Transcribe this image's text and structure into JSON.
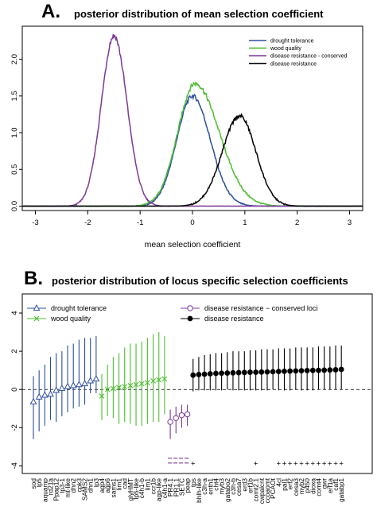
{
  "chart_data": [
    {
      "panel_letter": "A.",
      "title": "posterior distribution of mean selection coefficient",
      "type": "line",
      "xlabel": "mean selection coefficient",
      "ylabel": "",
      "xlim": [
        -3.25,
        3.25
      ],
      "ylim": [
        -0.06,
        2.45
      ],
      "x_ticks": [
        -3,
        -2,
        -1,
        0,
        1,
        2,
        3
      ],
      "y_ticks": [
        0.0,
        0.5,
        1.0,
        1.5,
        2.0
      ],
      "y_tick_labels": [
        "0.0",
        "0.5",
        "1.0",
        "1.5",
        "2.0"
      ],
      "grid": false,
      "legend_position": "top-right",
      "series": [
        {
          "name": "drought tolerance",
          "color": "#2e4f9e",
          "peak_x": 0.0,
          "peak_y": 1.5,
          "sd_left": 0.3,
          "sd_right": 0.34
        },
        {
          "name": "wood quality",
          "color": "#4cbd2f",
          "peak_x": 0.05,
          "peak_y": 1.67,
          "sd_left": 0.33,
          "sd_right": 0.46
        },
        {
          "name": "disease resistance - conserved",
          "color": "#7a3a97",
          "peak_x": -1.5,
          "peak_y": 2.32,
          "sd_left": 0.24,
          "sd_right": 0.25
        },
        {
          "name": "disease resistance",
          "color": "#000000",
          "peak_x": 0.9,
          "peak_y": 1.23,
          "sd_left": 0.33,
          "sd_right": 0.31
        }
      ]
    },
    {
      "panel_letter": "B.",
      "title": "posterior distribution of locus specific selection coefficients",
      "type": "scatter",
      "ylim": [
        -4.4,
        5.0
      ],
      "y_ticks": [
        4,
        2,
        0,
        -2,
        -4
      ],
      "y_tick_labels": [
        "4",
        "2",
        "0",
        "-2",
        "-4"
      ],
      "reference_line_y": 0,
      "grid": false,
      "legend": [
        {
          "label": "drought tolerance",
          "color": "#2e4f9e",
          "marker": "triangle"
        },
        {
          "label": "wood quality",
          "color": "#4cbd2f",
          "marker": "cross"
        },
        {
          "label": "disease resistance − conserved loci",
          "color": "#7a3a97",
          "marker": "circle"
        },
        {
          "label": "disease resistance",
          "color": "#000000",
          "marker": "dot"
        }
      ],
      "groups": [
        {
          "name": "drought tolerance",
          "color": "#2e4f9e",
          "marker": "triangle",
          "loci": [
            "sod",
            "lp5",
            "aquamp",
            "rd21a",
            "Ppap12",
            "lp3-1",
            "mt-like",
            "dhn2",
            "cpk3",
            "SAMS2",
            "dhn1",
            "lp3"
          ],
          "median": [
            -0.65,
            -0.4,
            -0.3,
            -0.25,
            -0.05,
            0.05,
            0.15,
            0.2,
            0.25,
            0.3,
            0.45,
            0.55
          ],
          "low": [
            -2.6,
            -2.2,
            -1.9,
            -1.6,
            -1.7,
            -1.4,
            -1.2,
            -1.0,
            -0.9,
            -0.8,
            -0.2,
            -0.2
          ],
          "high": [
            0.7,
            1.0,
            1.3,
            1.7,
            1.9,
            2.0,
            2.3,
            2.4,
            2.6,
            2.7,
            2.7,
            2.8
          ]
        },
        {
          "name": "wood quality",
          "color": "#4cbd2f",
          "marker": "cross",
          "loci": [
            "agp4",
            "agp6",
            "sams1",
            "lim1",
            "cad",
            "glyHMT",
            "lp5-like",
            "c4h1-b",
            "lim1",
            "ccr1b",
            "agp-like",
            "c4h1-a"
          ],
          "median": [
            -0.35,
            0.0,
            0.05,
            0.1,
            0.15,
            0.2,
            0.25,
            0.3,
            0.35,
            0.45,
            0.5,
            0.55
          ],
          "low": [
            -1.6,
            -1.4,
            -1.5,
            -1.8,
            -1.7,
            -1.8,
            -1.9,
            -1.9,
            -1.8,
            -1.7,
            -1.7,
            -1.3
          ],
          "high": [
            0.8,
            1.3,
            1.7,
            1.9,
            2.2,
            2.4,
            2.4,
            2.5,
            2.7,
            2.9,
            3.0,
            2.8
          ]
        },
        {
          "name": "disease resistance - conserved loci",
          "color": "#7a3a97",
          "marker": "circle",
          "loci": [
            "PR4.1",
            "PR1.1",
            "SETC",
            "peap"
          ],
          "median": [
            -1.7,
            -1.5,
            -1.35,
            -1.3
          ],
          "low": [
            -2.6,
            -2.3,
            -2.0,
            -1.9
          ],
          "high": [
            -1.05,
            -0.9,
            -0.8,
            -0.8
          ],
          "flag_rows_y": [
            -3.6,
            -3.85
          ]
        },
        {
          "name": "disease resistance",
          "color": "#000000",
          "marker": "dot",
          "loci": [
            "tps",
            "bhlh-like",
            "c3h-a",
            "enth1",
            "cht4",
            "myb3",
            "gatabo2",
            "c3h-b",
            "cesa7",
            "erd3",
            "erf1b",
            "comt2.1",
            "cwpalcnt",
            "ccoaomt",
            "PCAOt",
            "4cl",
            "pal1",
            "erf2",
            "cesa3",
            "myb2",
            "p450",
            "dioxa",
            "comt4",
            "gwr",
            "erf1a",
            "caf1",
            "gatabp1"
          ],
          "median": [
            0.75,
            0.78,
            0.8,
            0.82,
            0.84,
            0.85,
            0.86,
            0.87,
            0.88,
            0.89,
            0.9,
            0.9,
            0.91,
            0.92,
            0.93,
            0.94,
            0.95,
            0.96,
            0.97,
            0.98,
            0.99,
            1.0,
            1.0,
            1.01,
            1.02,
            1.03,
            1.05
          ],
          "low": [
            -0.1,
            -0.05,
            -0.05,
            -0.05,
            -0.05,
            -0.05,
            0.0,
            -0.05,
            -0.05,
            -0.05,
            -0.05,
            -0.05,
            -0.05,
            -0.05,
            0.0,
            -0.05,
            -0.05,
            -0.05,
            0.0,
            -0.05,
            -0.05,
            -0.05,
            0.0,
            0.0,
            0.0,
            0.0,
            0.0
          ],
          "high": [
            1.6,
            1.7,
            1.8,
            1.85,
            1.9,
            1.9,
            1.95,
            2.0,
            2.0,
            2.0,
            2.05,
            2.05,
            2.1,
            2.1,
            2.1,
            2.15,
            2.15,
            2.15,
            2.2,
            2.2,
            2.2,
            2.2,
            2.25,
            2.25,
            2.25,
            2.3,
            2.3
          ],
          "plus_marker": "+",
          "plus_marker_y": -3.85,
          "plus_marker_indices": [
            0,
            11,
            15,
            16,
            17,
            18,
            19,
            20,
            21,
            22,
            23,
            24,
            25,
            26
          ]
        }
      ]
    }
  ]
}
